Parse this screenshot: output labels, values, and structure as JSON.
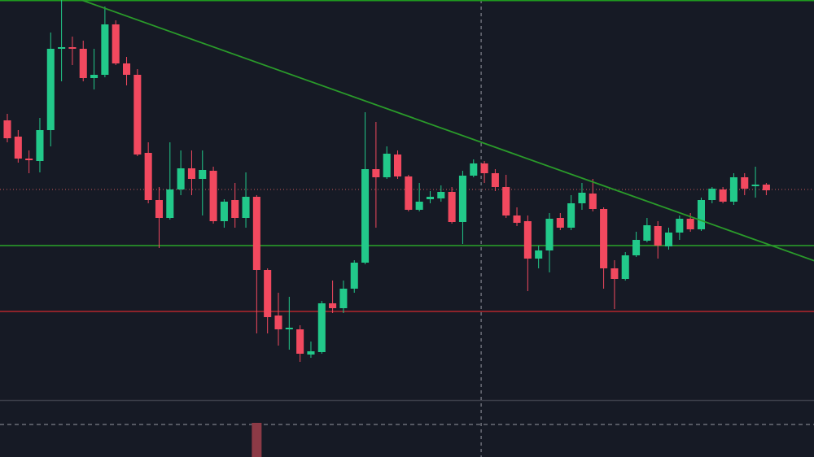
{
  "chart_data": {
    "type": "candlestick",
    "x": [
      0,
      1,
      2,
      3,
      4,
      5,
      6,
      7,
      8,
      9,
      10,
      11,
      12,
      13,
      14,
      15,
      16,
      17,
      18,
      19,
      20,
      21,
      22,
      23,
      24,
      25,
      26,
      27,
      28,
      29,
      30,
      31,
      32,
      33,
      34,
      35,
      36,
      37,
      38,
      39,
      40,
      41,
      42,
      43,
      44,
      45,
      46,
      47,
      48,
      49,
      50,
      51,
      52,
      53,
      54,
      55,
      56,
      57,
      58,
      59,
      60,
      61,
      62,
      63,
      64,
      65,
      66,
      67,
      68,
      69,
      70
    ],
    "open": [
      414,
      394,
      367,
      364,
      402,
      502,
      504,
      502,
      466,
      470,
      532,
      484,
      470,
      374,
      316,
      294,
      329,
      355,
      342,
      352,
      290,
      316,
      294,
      320,
      230,
      174,
      157,
      157,
      126,
      129,
      189,
      183,
      207,
      239,
      354,
      344,
      372,
      345,
      304,
      317,
      318,
      326,
      289,
      346,
      361,
      349,
      332,
      297,
      290,
      244,
      254,
      294,
      282,
      312,
      324,
      305,
      232,
      219,
      248,
      266,
      284,
      259,
      276,
      293,
      280,
      316,
      329,
      314,
      344,
      333,
      335
    ],
    "high": [
      422,
      402,
      377,
      417,
      522,
      562,
      517,
      512,
      502,
      554,
      537,
      492,
      477,
      387,
      332,
      387,
      377,
      377,
      377,
      357,
      317,
      337,
      350,
      322,
      232,
      202,
      197,
      162,
      142,
      192,
      217,
      217,
      242,
      424,
      412,
      382,
      377,
      347,
      337,
      327,
      334,
      332,
      352,
      366,
      364,
      354,
      347,
      307,
      297,
      260,
      300,
      300,
      322,
      337,
      342,
      307,
      242,
      252,
      277,
      294,
      290,
      282,
      297,
      300,
      319,
      332,
      332,
      349,
      349,
      357,
      337
    ],
    "low": [
      387,
      362,
      349,
      350,
      382,
      462,
      482,
      462,
      452,
      467,
      482,
      457,
      370,
      312,
      257,
      292,
      322,
      322,
      297,
      287,
      282,
      282,
      282,
      152,
      152,
      137,
      132,
      117,
      122,
      127,
      177,
      177,
      202,
      237,
      282,
      342,
      342,
      302,
      302,
      312,
      314,
      287,
      262,
      344,
      337,
      327,
      294,
      284,
      204,
      232,
      227,
      279,
      279,
      304,
      302,
      207,
      182,
      217,
      246,
      264,
      244,
      255,
      267,
      277,
      278,
      312,
      312,
      310,
      322,
      319,
      322
    ],
    "close": [
      392,
      367,
      365,
      402,
      502,
      504,
      502,
      466,
      470,
      532,
      484,
      470,
      372,
      316,
      294,
      329,
      355,
      342,
      353,
      290,
      314,
      294,
      320,
      230,
      172,
      157,
      159,
      127,
      130,
      189,
      183,
      207,
      239,
      354,
      344,
      373,
      345,
      304,
      314,
      320,
      326,
      289,
      346,
      361,
      349,
      332,
      297,
      288,
      244,
      254,
      293,
      282,
      312,
      325,
      305,
      232,
      219,
      248,
      267,
      285,
      260,
      276,
      293,
      280,
      316,
      330,
      314,
      344,
      330,
      335,
      328
    ],
    "up_color": "#22c98a",
    "down_color": "#f2495f",
    "xlim": [
      -0.676,
      74.4
    ],
    "ylim": [
      70,
      562
    ],
    "hlines": [
      {
        "value": 562,
        "color": "#1f9a1f"
      },
      {
        "value": 260,
        "color": "#2aa52a"
      },
      {
        "value": 179,
        "color": "#b3262c"
      }
    ],
    "price_line": {
      "value": 329,
      "color": "#c95a5a"
    },
    "trendline": {
      "x": [
        6.84,
        74.5
      ],
      "y": [
        562,
        241
      ],
      "color": "#2a9a2a"
    },
    "crosshair_x": 43.7,
    "volume": {
      "x": [
        23
      ],
      "values": [
        42
      ],
      "color": "#8c3a46",
      "ylim": [
        0,
        70
      ],
      "level": 40
    }
  }
}
